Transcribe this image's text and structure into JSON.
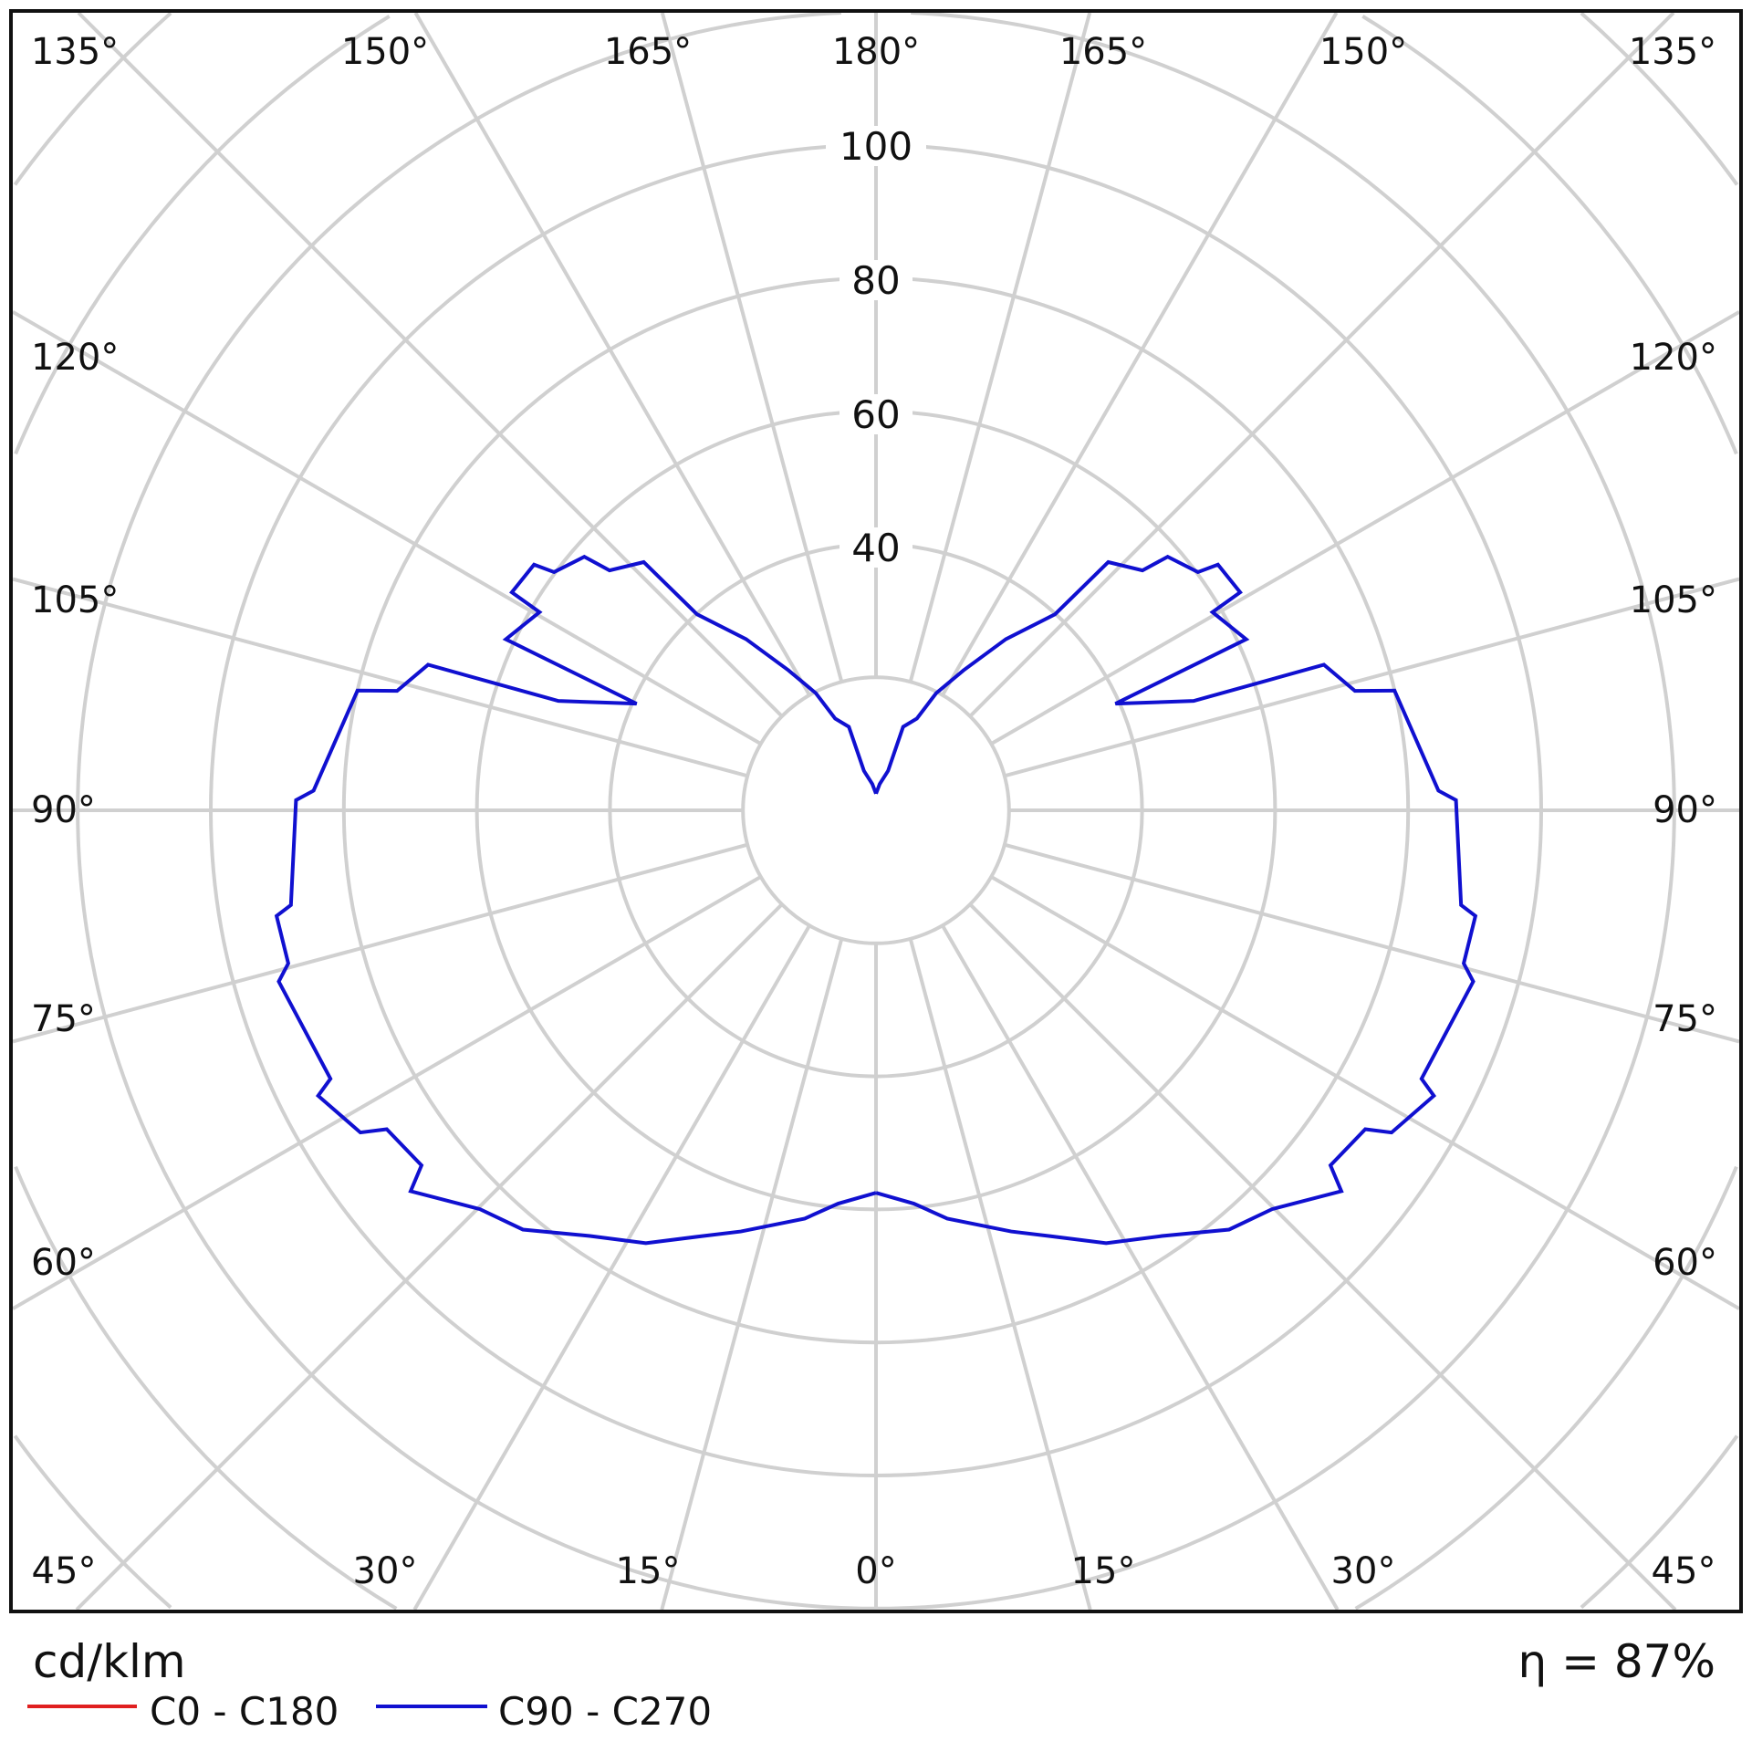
{
  "chart_data": {
    "type": "polar",
    "unit_label": "cd/klm",
    "efficiency_label": "η = 87%",
    "radial_ticks": [
      40,
      60,
      80,
      100
    ],
    "radial_rings": [
      20,
      40,
      60,
      80,
      100,
      120,
      140,
      160,
      180
    ],
    "angle_step_deg": 15,
    "top_angle_labels": [
      "135°",
      "150°",
      "165°",
      "180°",
      "165°",
      "150°",
      "135°"
    ],
    "side_angle_labels": [
      "120°",
      "105°",
      "90°",
      "75°",
      "60°"
    ],
    "bottom_angle_labels": [
      "45°",
      "30°",
      "15°",
      "0°",
      "15°",
      "30°",
      "45°"
    ],
    "grid": true,
    "legend_position": "bottom-left",
    "series": [
      {
        "name": "C0 - C180",
        "color": "#e02020",
        "gamma": [],
        "intensity": []
      },
      {
        "name": "C90 - C270",
        "color": "#1010d0",
        "gamma": [
          0,
          5.5,
          9.9,
          17.8,
          22.3,
          28,
          33.9,
          40.1,
          44.8,
          50.7,
          52,
          56.9,
          58,
          62.9,
          63.8,
          74,
          75.4,
          80,
          80.8,
          91,
          92,
          103,
          104,
          108,
          109,
          114,
          114.8,
          120.5,
          120.9,
          125.7,
          126.5,
          131,
          132,
          136.9,
          137.6,
          142.8,
          148,
          152.8,
          156,
          162,
          163,
          172,
          180
        ],
        "intensity": [
          57.5,
          59.4,
          62.3,
          66.5,
          69.2,
          73.7,
          77.1,
          82.4,
          84.5,
          90.4,
          86.7,
          87.8,
          91.4,
          94.2,
          91.4,
          93.4,
          91.3,
          91.5,
          89.1,
          87.2,
          84.6,
          80.0,
          74.2,
          70.8,
          50.5,
          39.4,
          61.3,
          58.7,
          63.8,
          63.3,
          60.2,
          58.1,
          53.9,
          51.1,
          39.9,
          32.3,
          24.8,
          19.8,
          15.1,
          13.2,
          6.2,
          4.0,
          2.5
        ]
      }
    ]
  }
}
